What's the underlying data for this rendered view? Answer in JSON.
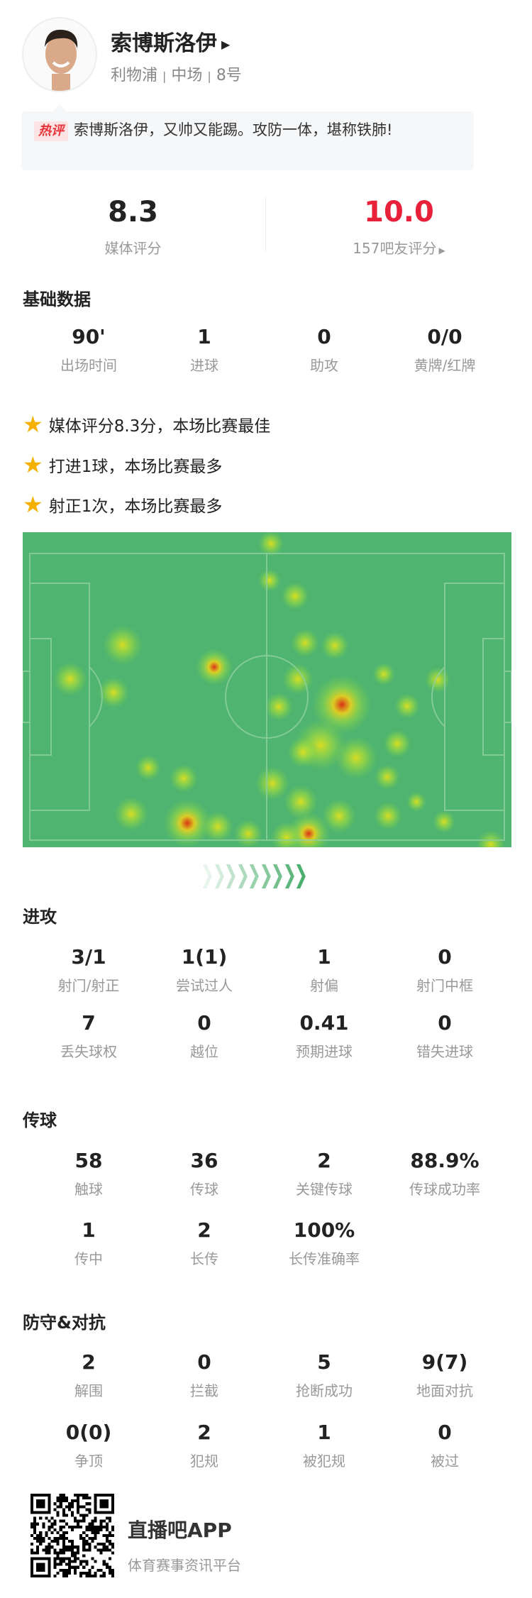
{
  "player": {
    "name": "索博斯洛伊",
    "team": "利物浦",
    "position": "中场",
    "number": "8号",
    "separator": "|"
  },
  "comment": {
    "tag": "热评",
    "text": "索博斯洛伊，又帅又能踢。攻防一体，堪称铁肺!"
  },
  "ratings": {
    "media_value": "8.3",
    "media_label": "媒体评分",
    "fan_value": "10.0",
    "fan_label": "157吧友评分",
    "fan_color": "#e8203a"
  },
  "basic": {
    "title": "基础数据",
    "stats": [
      {
        "value": "90'",
        "label": "出场时间"
      },
      {
        "value": "1",
        "label": "进球"
      },
      {
        "value": "0",
        "label": "助攻"
      },
      {
        "value": "0/0",
        "label": "黄牌/红牌"
      }
    ]
  },
  "highlights": [
    "媒体评分8.3分，本场比赛最佳",
    "打进1球，本场比赛最多",
    "射正1次，本场比赛最多"
  ],
  "attack": {
    "title": "进攻",
    "stats": [
      {
        "value": "3/1",
        "label": "射门/射正"
      },
      {
        "value": "1(1)",
        "label": "尝试过人"
      },
      {
        "value": "1",
        "label": "射偏"
      },
      {
        "value": "0",
        "label": "射门中框"
      },
      {
        "value": "7",
        "label": "丢失球权"
      },
      {
        "value": "0",
        "label": "越位"
      },
      {
        "value": "0.41",
        "label": "预期进球"
      },
      {
        "value": "0",
        "label": "错失进球"
      }
    ]
  },
  "passing": {
    "title": "传球",
    "stats": [
      {
        "value": "58",
        "label": "触球"
      },
      {
        "value": "36",
        "label": "传球"
      },
      {
        "value": "2",
        "label": "关键传球"
      },
      {
        "value": "88.9%",
        "label": "传球成功率"
      },
      {
        "value": "1",
        "label": "传中"
      },
      {
        "value": "2",
        "label": "长传"
      },
      {
        "value": "100%",
        "label": "长传准确率"
      }
    ]
  },
  "defense": {
    "title": "防守&对抗",
    "stats": [
      {
        "value": "2",
        "label": "解围"
      },
      {
        "value": "0",
        "label": "拦截"
      },
      {
        "value": "5",
        "label": "抢断成功"
      },
      {
        "value": "9(7)",
        "label": "地面对抗"
      },
      {
        "value": "0(0)",
        "label": "争顶"
      },
      {
        "value": "2",
        "label": "犯规"
      },
      {
        "value": "1",
        "label": "被犯规"
      },
      {
        "value": "0",
        "label": "被过"
      }
    ]
  },
  "footer": {
    "app_name": "直播吧APP",
    "tagline": "体育赛事资讯平台"
  },
  "icons": {
    "star": "star-icon",
    "arrow": "triangle-right-icon",
    "direction": "chevrons-right-icon"
  }
}
